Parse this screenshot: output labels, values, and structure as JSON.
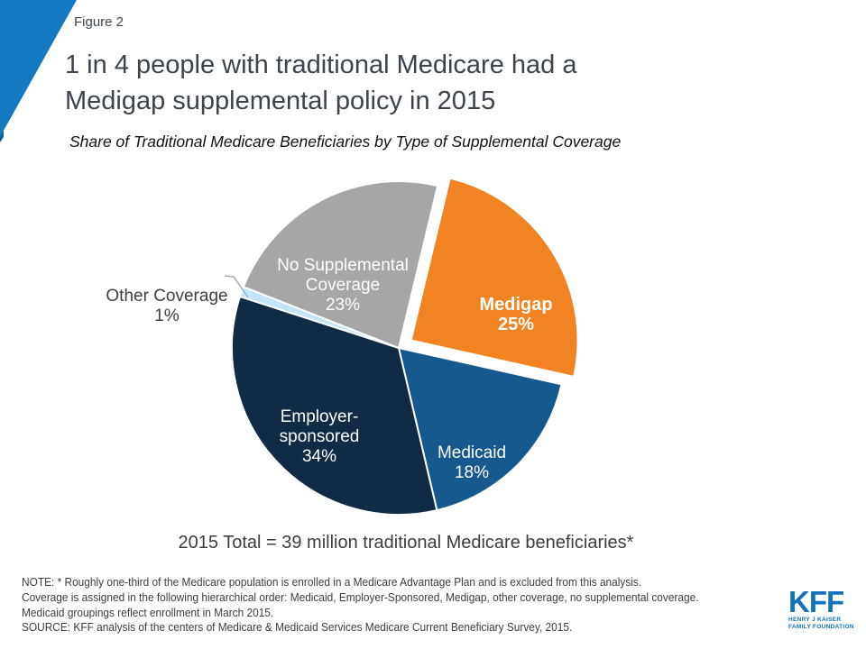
{
  "slide": {
    "figure_label": "Figure 2",
    "title": "1 in 4 people with traditional Medicare had a\nMedigap supplemental policy in 2015",
    "subtitle": "Share of Traditional Medicare Beneficiaries by Type of Supplemental Coverage",
    "total_caption": "2015 Total = 39 million traditional Medicare beneficiaries*",
    "notes": [
      "NOTE: * Roughly one-third of the Medicare population is enrolled in a Medicare Advantage Plan and is excluded from this analysis.",
      "Coverage is assigned in the following hierarchical order: Medicaid, Employer-Sponsored, Medigap, other coverage, no supplemental coverage.",
      "Medicaid groupings reflect enrollment in March 2015.",
      "SOURCE: KFF analysis of the centers of Medicare & Medicaid Services Medicare Current Beneficiary Survey, 2015."
    ],
    "logo": {
      "text": "KFF",
      "sub1": "HENRY J KAISER",
      "sub2": "FAMILY FOUNDATION",
      "color": "#1373BA"
    },
    "accent_color": "#137AC1"
  },
  "chart_data": {
    "type": "pie",
    "title": "Share of Traditional Medicare Beneficiaries by Type of Supplemental Coverage",
    "total_label": "2015 Total = 39 million traditional Medicare beneficiaries*",
    "start_angle_deg": 13.5,
    "legend_position": "none",
    "slices": [
      {
        "label": "Medigap",
        "display": "Medigap",
        "value": 25,
        "pct_label": "25%",
        "color": "#F18322",
        "exploded": true
      },
      {
        "label": "Medicaid",
        "display": "Medicaid",
        "value": 18,
        "pct_label": "18%",
        "color": "#16598E",
        "exploded": false
      },
      {
        "label": "Employer-sponsored",
        "display": "Employer-\nsponsored",
        "value": 34,
        "pct_label": "34%",
        "color": "#112B44",
        "exploded": false
      },
      {
        "label": "Other Coverage",
        "display": "Other Coverage",
        "value": 1,
        "pct_label": "1%",
        "color": "#C4E5F8",
        "exploded": false
      },
      {
        "label": "No Supplemental Coverage",
        "display": "No Supplemental\nCoverage",
        "value": 23,
        "pct_label": "23%",
        "color": "#A6A6A6",
        "exploded": false
      }
    ]
  }
}
